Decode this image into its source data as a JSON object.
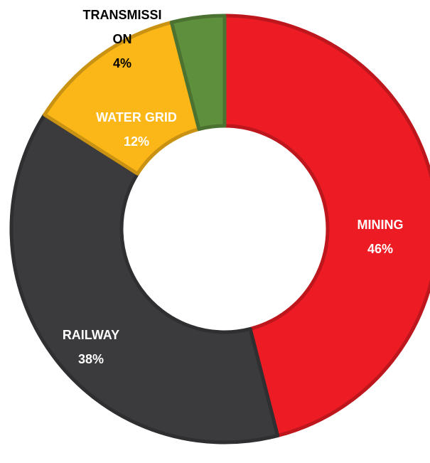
{
  "chart_data": {
    "type": "donut",
    "categories": [
      "MINING",
      "RAILWAY",
      "WATER GRID",
      "TRANSMISSION"
    ],
    "values": [
      46,
      38,
      12,
      4
    ],
    "value_labels": [
      "46%",
      "38%",
      "12%",
      "4%"
    ],
    "colors": [
      "#ed1c24",
      "#3b3b3d",
      "#fbb717",
      "#5e8f3c"
    ],
    "label_colors": [
      "#ffffff",
      "#ffffff",
      "#ffffff",
      "#000000"
    ]
  }
}
